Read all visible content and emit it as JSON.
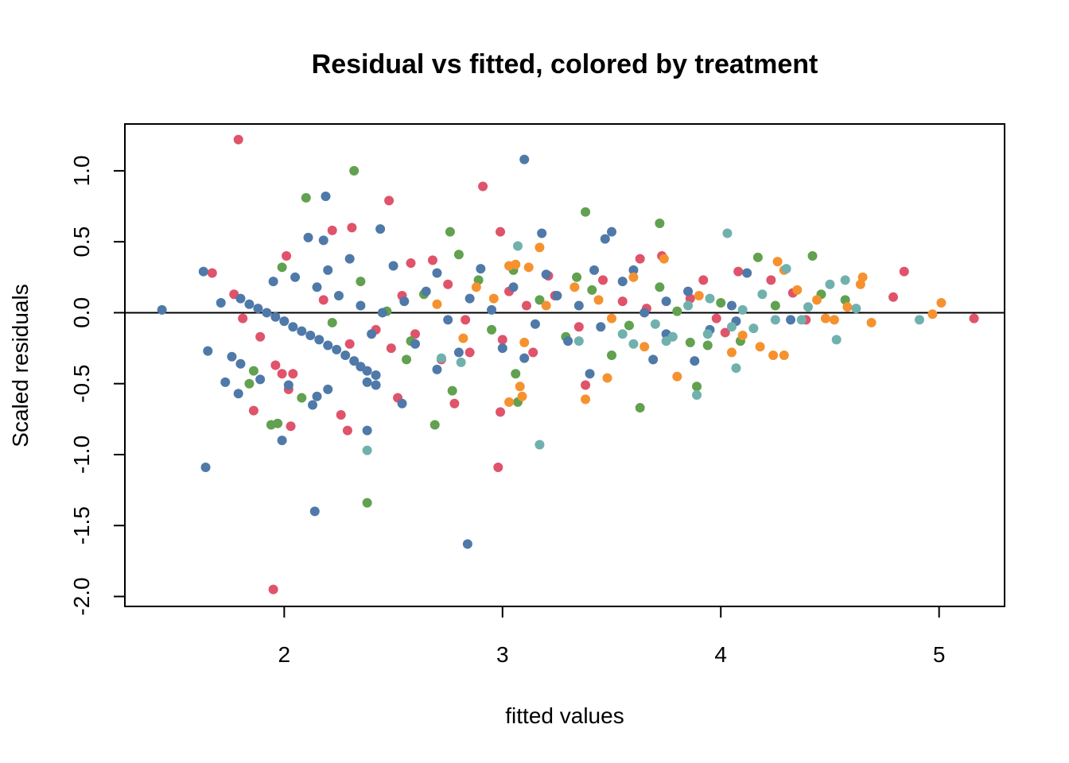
{
  "chart_data": {
    "type": "scatter",
    "title": "Residual vs fitted, colored by treatment",
    "xlabel": "fitted values",
    "ylabel": "Scaled residuals",
    "xlim": [
      1.27,
      5.3
    ],
    "ylim": [
      -2.07,
      1.33
    ],
    "x_ticks": [
      {
        "value": 2,
        "label": "2"
      },
      {
        "value": 3,
        "label": "3"
      },
      {
        "value": 4,
        "label": "4"
      },
      {
        "value": 5,
        "label": "5"
      }
    ],
    "y_ticks": [
      {
        "value": 1.0,
        "label": "1.0"
      },
      {
        "value": 0.5,
        "label": "0.5"
      },
      {
        "value": 0.0,
        "label": "0.0"
      },
      {
        "value": -0.5,
        "label": "-0.5"
      },
      {
        "value": -1.0,
        "label": "-1.0"
      },
      {
        "value": -1.5,
        "label": "-1.5"
      },
      {
        "value": -2.0,
        "label": "-2.0"
      }
    ],
    "reference_line": {
      "y": 0.0
    },
    "grid": false,
    "legend": "none",
    "colors": {
      "red": "#DF536B",
      "green": "#61A14F",
      "blue": "#4F79A8",
      "orange": "#F5922F",
      "teal": "#70B1AE",
      "axis": "#000000"
    },
    "series": [
      {
        "color": "red",
        "points": [
          [
            1.79,
            1.22
          ],
          [
            2.91,
            0.89
          ],
          [
            2.48,
            0.79
          ],
          [
            2.31,
            0.6
          ],
          [
            2.22,
            0.58
          ],
          [
            2.99,
            0.57
          ],
          [
            2.01,
            0.4
          ],
          [
            1.67,
            0.28
          ],
          [
            1.77,
            0.13
          ],
          [
            1.81,
            -0.04
          ],
          [
            1.89,
            -0.17
          ],
          [
            1.86,
            -0.69
          ],
          [
            1.96,
            -0.37
          ],
          [
            1.99,
            -0.43
          ],
          [
            2.04,
            -0.43
          ],
          [
            2.02,
            -0.54
          ],
          [
            2.03,
            -0.8
          ],
          [
            1.95,
            -1.95
          ],
          [
            2.26,
            -0.72
          ],
          [
            2.29,
            -0.83
          ],
          [
            2.52,
            -0.6
          ],
          [
            2.49,
            -0.25
          ],
          [
            2.98,
            -1.09
          ],
          [
            2.99,
            -0.7
          ],
          [
            2.78,
            -0.64
          ],
          [
            2.85,
            -0.28
          ],
          [
            3.14,
            -0.28
          ],
          [
            3.63,
            0.38
          ],
          [
            3.73,
            0.4
          ],
          [
            3.92,
            0.23
          ],
          [
            3.86,
            0.1
          ],
          [
            4.08,
            0.29
          ],
          [
            4.23,
            0.23
          ],
          [
            4.33,
            0.14
          ],
          [
            4.39,
            -0.05
          ],
          [
            4.79,
            0.11
          ],
          [
            4.84,
            0.29
          ],
          [
            5.16,
            -0.04
          ],
          [
            2.68,
            0.37
          ],
          [
            2.58,
            0.35
          ],
          [
            2.75,
            0.2
          ],
          [
            3.03,
            0.15
          ],
          [
            3.21,
            0.26
          ],
          [
            3.35,
            -0.1
          ],
          [
            3.46,
            0.23
          ],
          [
            2.42,
            -0.12
          ],
          [
            2.6,
            -0.15
          ],
          [
            2.83,
            -0.05
          ],
          [
            3.11,
            0.05
          ],
          [
            3.66,
            0.03
          ],
          [
            3.98,
            -0.04
          ],
          [
            2.54,
            0.12
          ],
          [
            2.18,
            0.09
          ],
          [
            2.3,
            -0.22
          ],
          [
            2.72,
            -0.33
          ],
          [
            3.0,
            -0.19
          ],
          [
            3.38,
            -0.51
          ],
          [
            3.55,
            0.08
          ],
          [
            4.02,
            -0.14
          ],
          [
            3.24,
            0.12
          ]
        ]
      },
      {
        "color": "green",
        "points": [
          [
            2.32,
            1.0
          ],
          [
            2.1,
            0.81
          ],
          [
            3.38,
            0.71
          ],
          [
            3.72,
            0.63
          ],
          [
            2.76,
            0.57
          ],
          [
            4.42,
            0.4
          ],
          [
            4.17,
            0.39
          ],
          [
            1.99,
            0.32
          ],
          [
            1.86,
            -0.41
          ],
          [
            1.84,
            -0.5
          ],
          [
            1.94,
            -0.79
          ],
          [
            1.97,
            -0.78
          ],
          [
            2.08,
            -0.6
          ],
          [
            2.38,
            -1.34
          ],
          [
            2.69,
            -0.79
          ],
          [
            3.63,
            -0.67
          ],
          [
            3.07,
            -0.63
          ],
          [
            3.06,
            -0.43
          ],
          [
            2.77,
            -0.55
          ],
          [
            3.89,
            -0.52
          ],
          [
            3.94,
            -0.23
          ],
          [
            4.09,
            -0.2
          ],
          [
            4.46,
            0.13
          ],
          [
            4.57,
            0.09
          ],
          [
            4.25,
            0.05
          ],
          [
            2.64,
            0.13
          ],
          [
            2.89,
            0.23
          ],
          [
            3.17,
            0.09
          ],
          [
            3.41,
            0.16
          ],
          [
            3.58,
            -0.09
          ],
          [
            3.8,
            0.01
          ],
          [
            2.47,
            0.01
          ],
          [
            2.22,
            -0.07
          ],
          [
            2.95,
            -0.12
          ],
          [
            3.29,
            -0.17
          ],
          [
            2.56,
            -0.33
          ],
          [
            3.5,
            -0.3
          ],
          [
            3.72,
            0.18
          ],
          [
            4.0,
            0.07
          ],
          [
            2.8,
            0.41
          ],
          [
            3.05,
            0.3
          ],
          [
            2.35,
            0.22
          ],
          [
            2.58,
            -0.2
          ],
          [
            3.34,
            0.25
          ],
          [
            3.86,
            -0.21
          ]
        ]
      },
      {
        "color": "blue",
        "points": [
          [
            3.1,
            1.08
          ],
          [
            2.19,
            0.82
          ],
          [
            2.11,
            0.53
          ],
          [
            2.18,
            0.51
          ],
          [
            2.44,
            0.59
          ],
          [
            3.5,
            0.57
          ],
          [
            3.18,
            0.56
          ],
          [
            3.47,
            0.52
          ],
          [
            1.63,
            0.29
          ],
          [
            1.44,
            0.02
          ],
          [
            1.65,
            -0.27
          ],
          [
            1.64,
            -1.09
          ],
          [
            1.71,
            0.07
          ],
          [
            1.73,
            -0.49
          ],
          [
            1.76,
            -0.31
          ],
          [
            1.8,
            -0.36
          ],
          [
            1.79,
            -0.57
          ],
          [
            1.89,
            -0.47
          ],
          [
            1.99,
            -0.9
          ],
          [
            2.02,
            -0.51
          ],
          [
            2.13,
            -0.65
          ],
          [
            2.15,
            -0.59
          ],
          [
            2.2,
            -0.54
          ],
          [
            2.14,
            -1.4
          ],
          [
            2.38,
            -0.83
          ],
          [
            2.38,
            -0.49
          ],
          [
            2.42,
            -0.51
          ],
          [
            2.54,
            -0.64
          ],
          [
            2.84,
            -1.63
          ],
          [
            3.4,
            -0.43
          ],
          [
            3.69,
            -0.33
          ],
          [
            3.88,
            -0.34
          ],
          [
            4.12,
            0.28
          ],
          [
            4.32,
            -0.05
          ],
          [
            4.07,
            -0.06
          ],
          [
            1.8,
            0.1
          ],
          [
            1.84,
            0.06
          ],
          [
            1.88,
            0.03
          ],
          [
            1.92,
            0.0
          ],
          [
            1.96,
            -0.03
          ],
          [
            2.0,
            -0.06
          ],
          [
            2.04,
            -0.1
          ],
          [
            2.08,
            -0.13
          ],
          [
            2.12,
            -0.16
          ],
          [
            2.16,
            -0.19
          ],
          [
            2.2,
            -0.23
          ],
          [
            2.24,
            -0.26
          ],
          [
            2.28,
            -0.3
          ],
          [
            2.32,
            -0.34
          ],
          [
            2.35,
            -0.38
          ],
          [
            2.38,
            -0.41
          ],
          [
            2.42,
            -0.44
          ],
          [
            1.95,
            0.22
          ],
          [
            2.05,
            0.25
          ],
          [
            2.15,
            0.18
          ],
          [
            2.25,
            0.12
          ],
          [
            2.35,
            0.05
          ],
          [
            2.45,
            0.0
          ],
          [
            2.55,
            0.08
          ],
          [
            2.65,
            0.15
          ],
          [
            2.75,
            -0.05
          ],
          [
            2.85,
            0.1
          ],
          [
            2.95,
            0.02
          ],
          [
            3.05,
            0.18
          ],
          [
            3.15,
            -0.08
          ],
          [
            3.25,
            0.12
          ],
          [
            3.35,
            0.05
          ],
          [
            3.45,
            -0.1
          ],
          [
            3.55,
            0.22
          ],
          [
            3.65,
            0.0
          ],
          [
            3.75,
            0.08
          ],
          [
            3.85,
            0.15
          ],
          [
            3.95,
            -0.12
          ],
          [
            4.05,
            0.05
          ],
          [
            2.3,
            0.38
          ],
          [
            2.5,
            0.33
          ],
          [
            2.7,
            0.28
          ],
          [
            2.9,
            0.31
          ],
          [
            3.2,
            0.27
          ],
          [
            3.42,
            0.3
          ],
          [
            2.6,
            -0.22
          ],
          [
            2.8,
            -0.28
          ],
          [
            3.0,
            -0.25
          ],
          [
            3.3,
            -0.2
          ],
          [
            2.4,
            -0.15
          ],
          [
            2.2,
            0.3
          ],
          [
            3.6,
            0.3
          ],
          [
            3.1,
            -0.32
          ],
          [
            2.7,
            -0.4
          ],
          [
            3.75,
            -0.15
          ]
        ]
      },
      {
        "color": "orange",
        "points": [
          [
            3.17,
            0.46
          ],
          [
            3.03,
            0.33
          ],
          [
            3.06,
            0.34
          ],
          [
            3.12,
            0.32
          ],
          [
            3.38,
            -0.61
          ],
          [
            3.48,
            -0.46
          ],
          [
            3.08,
            -0.52
          ],
          [
            3.09,
            -0.59
          ],
          [
            3.03,
            -0.63
          ],
          [
            3.8,
            -0.45
          ],
          [
            4.24,
            -0.3
          ],
          [
            4.29,
            -0.3
          ],
          [
            4.58,
            0.04
          ],
          [
            4.64,
            0.2
          ],
          [
            4.65,
            0.25
          ],
          [
            4.69,
            -0.07
          ],
          [
            4.97,
            -0.01
          ],
          [
            5.01,
            0.07
          ],
          [
            4.26,
            0.36
          ],
          [
            4.29,
            0.3
          ],
          [
            4.44,
            0.09
          ],
          [
            4.48,
            -0.04
          ],
          [
            3.74,
            0.38
          ],
          [
            3.6,
            0.25
          ],
          [
            3.33,
            0.18
          ],
          [
            3.2,
            0.05
          ],
          [
            2.96,
            0.1
          ],
          [
            2.82,
            -0.18
          ],
          [
            3.5,
            -0.04
          ],
          [
            3.9,
            0.12
          ],
          [
            4.1,
            -0.16
          ],
          [
            4.35,
            0.16
          ],
          [
            2.7,
            0.06
          ],
          [
            3.1,
            -0.21
          ],
          [
            3.65,
            -0.24
          ],
          [
            4.05,
            -0.28
          ],
          [
            4.18,
            -0.24
          ],
          [
            4.52,
            -0.05
          ],
          [
            3.44,
            0.09
          ],
          [
            2.88,
            0.18
          ]
        ]
      },
      {
        "color": "teal",
        "points": [
          [
            3.07,
            0.47
          ],
          [
            4.03,
            0.56
          ],
          [
            2.38,
            -0.97
          ],
          [
            3.17,
            -0.93
          ],
          [
            3.89,
            -0.58
          ],
          [
            4.07,
            -0.39
          ],
          [
            3.75,
            -0.2
          ],
          [
            3.78,
            -0.17
          ],
          [
            3.94,
            -0.15
          ],
          [
            4.05,
            -0.1
          ],
          [
            4.15,
            -0.11
          ],
          [
            4.19,
            0.13
          ],
          [
            4.3,
            0.31
          ],
          [
            4.37,
            -0.05
          ],
          [
            4.5,
            0.2
          ],
          [
            4.57,
            0.23
          ],
          [
            4.53,
            -0.19
          ],
          [
            4.91,
            -0.05
          ],
          [
            2.81,
            -0.35
          ],
          [
            2.72,
            -0.32
          ],
          [
            3.35,
            -0.2
          ],
          [
            3.55,
            -0.15
          ],
          [
            3.85,
            0.05
          ],
          [
            4.1,
            0.02
          ],
          [
            4.25,
            -0.05
          ],
          [
            4.4,
            0.04
          ],
          [
            3.95,
            0.1
          ],
          [
            3.7,
            -0.08
          ],
          [
            4.62,
            0.03
          ],
          [
            3.6,
            -0.22
          ]
        ]
      }
    ]
  }
}
